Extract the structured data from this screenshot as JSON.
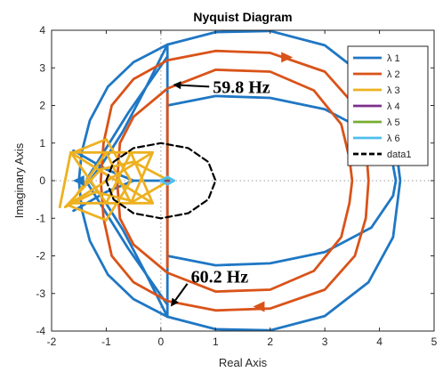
{
  "chart_data": {
    "type": "line",
    "title": "Nyquist Diagram",
    "xlabel": "Real Axis",
    "ylabel": "Imaginary Axis",
    "xlim": [
      -2,
      5
    ],
    "ylim": [
      -4,
      4
    ],
    "x_ticks": [
      "-2",
      "-1",
      "0",
      "1",
      "2",
      "3",
      "4",
      "5"
    ],
    "y_ticks": [
      "-4",
      "-3",
      "-2",
      "-1",
      "0",
      "1",
      "2",
      "3",
      "4"
    ],
    "grid": "dotted zero lines",
    "legend_position": "top-right",
    "series": [
      {
        "name": "λ 1",
        "color": "#1f77c4",
        "paths": [
          [
            [
              0.12,
              3.62
            ],
            [
              -0.5,
              3.15
            ],
            [
              -0.97,
              2.5
            ],
            [
              -1.3,
              1.6
            ],
            [
              -1.45,
              0.75
            ],
            [
              -1.5,
              0.0
            ],
            [
              -1.45,
              -0.75
            ],
            [
              -1.3,
              -1.6
            ],
            [
              -0.97,
              -2.5
            ],
            [
              -0.5,
              -3.15
            ],
            [
              0.12,
              -3.62
            ],
            [
              1.0,
              -3.95
            ],
            [
              2.0,
              -3.98
            ],
            [
              3.0,
              -3.6
            ],
            [
              3.8,
              -2.7
            ],
            [
              4.25,
              -1.5
            ],
            [
              4.38,
              0.0
            ],
            [
              4.25,
              1.5
            ],
            [
              3.8,
              2.7
            ],
            [
              3.0,
              3.6
            ],
            [
              2.0,
              3.98
            ],
            [
              1.0,
              3.95
            ],
            [
              0.12,
              3.62
            ]
          ],
          [
            [
              0.12,
              -3.62
            ],
            [
              0.12,
              3.62
            ]
          ],
          [
            [
              0.12,
              2.0
            ],
            [
              1.0,
              2.25
            ],
            [
              2.0,
              2.2
            ],
            [
              3.0,
              1.9
            ],
            [
              3.85,
              1.25
            ],
            [
              4.25,
              0.4
            ],
            [
              4.3,
              0.0
            ],
            [
              4.25,
              -0.4
            ],
            [
              3.85,
              -1.25
            ],
            [
              3.0,
              -1.9
            ],
            [
              2.0,
              -2.2
            ],
            [
              1.0,
              -2.25
            ],
            [
              0.12,
              -2.0
            ]
          ],
          [
            [
              0.12,
              3.62
            ],
            [
              -0.3,
              2.4
            ],
            [
              -0.7,
              1.3
            ],
            [
              -1.05,
              0.5
            ],
            [
              -1.3,
              0.0
            ],
            [
              -1.05,
              -0.5
            ],
            [
              -0.7,
              -1.3
            ],
            [
              -0.3,
              -2.4
            ],
            [
              0.12,
              -3.62
            ]
          ],
          [
            [
              -1.6,
              0.8
            ],
            [
              -1.0,
              0.3
            ],
            [
              -0.5,
              0.0
            ],
            [
              0.0,
              0.0
            ],
            [
              0.12,
              0.0
            ]
          ],
          [
            [
              -1.6,
              -0.8
            ],
            [
              -1.0,
              -0.3
            ],
            [
              -0.5,
              0.0
            ]
          ],
          [
            [
              0.12,
              3.3
            ],
            [
              -0.6,
              1.8
            ],
            [
              -1.35,
              0.05
            ]
          ],
          [
            [
              0.12,
              -3.3
            ],
            [
              -0.6,
              -1.8
            ],
            [
              -1.35,
              -0.05
            ]
          ]
        ]
      },
      {
        "name": "λ 2",
        "color": "#d95319",
        "paths": [
          [
            [
              0.12,
              3.2
            ],
            [
              1.0,
              3.45
            ],
            [
              2.0,
              3.4
            ],
            [
              3.0,
              2.9
            ],
            [
              3.55,
              2.0
            ],
            [
              3.75,
              1.0
            ],
            [
              3.8,
              0.0
            ],
            [
              3.75,
              -1.0
            ],
            [
              3.55,
              -2.0
            ],
            [
              3.0,
              -2.9
            ],
            [
              2.0,
              -3.4
            ],
            [
              1.0,
              -3.45
            ],
            [
              0.12,
              -3.2
            ],
            [
              -0.5,
              -2.7
            ],
            [
              -0.9,
              -2.0
            ],
            [
              -1.05,
              -1.0
            ],
            [
              -1.1,
              0.0
            ],
            [
              -1.05,
              1.0
            ],
            [
              -0.9,
              2.0
            ],
            [
              -0.5,
              2.7
            ],
            [
              0.12,
              3.2
            ]
          ],
          [
            [
              0.12,
              2.45
            ],
            [
              -0.5,
              1.7
            ],
            [
              -0.75,
              1.0
            ],
            [
              -0.8,
              0.0
            ],
            [
              -0.75,
              -1.0
            ],
            [
              -0.5,
              -1.7
            ],
            [
              0.12,
              -2.45
            ],
            [
              1.0,
              -2.95
            ],
            [
              2.0,
              -2.9
            ],
            [
              2.8,
              -2.4
            ],
            [
              3.3,
              -1.5
            ],
            [
              3.45,
              -0.6
            ],
            [
              3.5,
              0.0
            ],
            [
              3.45,
              0.6
            ],
            [
              3.3,
              1.5
            ],
            [
              2.8,
              2.4
            ],
            [
              2.0,
              2.9
            ],
            [
              1.0,
              2.95
            ],
            [
              0.12,
              2.45
            ]
          ],
          [
            [
              0.12,
              2.3
            ],
            [
              0.12,
              -2.3
            ]
          ]
        ]
      },
      {
        "name": "λ 3",
        "color": "#edb120",
        "paths": [
          [
            [
              -1.65,
              0.75
            ],
            [
              -0.15,
              0.75
            ],
            [
              -1.65,
              -0.6
            ],
            [
              -0.15,
              -0.6
            ],
            [
              -1.65,
              0.75
            ]
          ],
          [
            [
              -1.65,
              0.75
            ],
            [
              -1.0,
              -0.6
            ],
            [
              -0.55,
              0.75
            ],
            [
              -0.15,
              -0.6
            ]
          ],
          [
            [
              -1.65,
              -0.6
            ],
            [
              -1.0,
              0.75
            ],
            [
              -0.55,
              -0.6
            ],
            [
              -0.15,
              0.75
            ]
          ],
          [
            [
              -1.75,
              -0.7
            ],
            [
              -1.2,
              -0.3
            ],
            [
              -0.5,
              -0.55
            ],
            [
              0.15,
              0.0
            ]
          ],
          [
            [
              -1.75,
              -0.7
            ],
            [
              -1.1,
              0.3
            ],
            [
              -0.5,
              0.5
            ],
            [
              0.15,
              0.0
            ]
          ],
          [
            [
              -1.65,
              0.75
            ],
            [
              -1.85,
              -0.7
            ]
          ],
          [
            [
              -1.0,
              1.1
            ],
            [
              -0.55,
              0.0
            ],
            [
              -1.0,
              -1.05
            ]
          ],
          [
            [
              -1.0,
              1.1
            ],
            [
              -1.6,
              0.75
            ]
          ],
          [
            [
              -1.0,
              -1.05
            ],
            [
              -1.7,
              -0.65
            ]
          ]
        ]
      },
      {
        "name": "λ 4",
        "color": "#7e2f8e",
        "paths": [
          [
            [
              0.09,
              0.0
            ],
            [
              0.15,
              0.0
            ]
          ]
        ]
      },
      {
        "name": "λ 5",
        "color": "#77ac30",
        "paths": [
          [
            [
              0.09,
              0.05
            ],
            [
              0.15,
              0.05
            ]
          ]
        ]
      },
      {
        "name": "λ 6",
        "color": "#4dbeee",
        "paths": [
          [
            [
              0.0,
              0.0
            ],
            [
              0.12,
              0.1
            ],
            [
              0.24,
              0.0
            ],
            [
              0.12,
              -0.1
            ],
            [
              0.0,
              0.0
            ]
          ]
        ]
      },
      {
        "name": "data1",
        "color": "#000000",
        "style": "dashed",
        "paths": [
          [
            [
              -1,
              0
            ],
            [
              -0.866,
              0.5
            ],
            [
              -0.5,
              0.866
            ],
            [
              0,
              1
            ],
            [
              0.5,
              0.866
            ],
            [
              0.866,
              0.5
            ],
            [
              1,
              0
            ],
            [
              0.866,
              -0.5
            ],
            [
              0.5,
              -0.866
            ],
            [
              0,
              -1
            ],
            [
              -0.5,
              -0.866
            ],
            [
              -0.866,
              -0.5
            ],
            [
              -1,
              0
            ]
          ]
        ]
      }
    ],
    "direction_arrows": [
      {
        "series": "λ 2",
        "at": [
          2.3,
          3.28
        ],
        "direction": "right"
      },
      {
        "series": "λ 2",
        "at": [
          1.8,
          -3.35
        ],
        "direction": "left"
      },
      {
        "series": "λ 1",
        "at": [
          -1.5,
          0.0
        ],
        "direction": "left"
      }
    ],
    "annotations": [
      {
        "text": "59.8 Hz",
        "text_at": [
          0.95,
          2.5
        ],
        "arrow_to": [
          0.22,
          2.55
        ]
      },
      {
        "text": "60.2 Hz",
        "text_at": [
          0.55,
          -2.55
        ],
        "arrow_to": [
          0.18,
          -3.35
        ]
      }
    ]
  }
}
